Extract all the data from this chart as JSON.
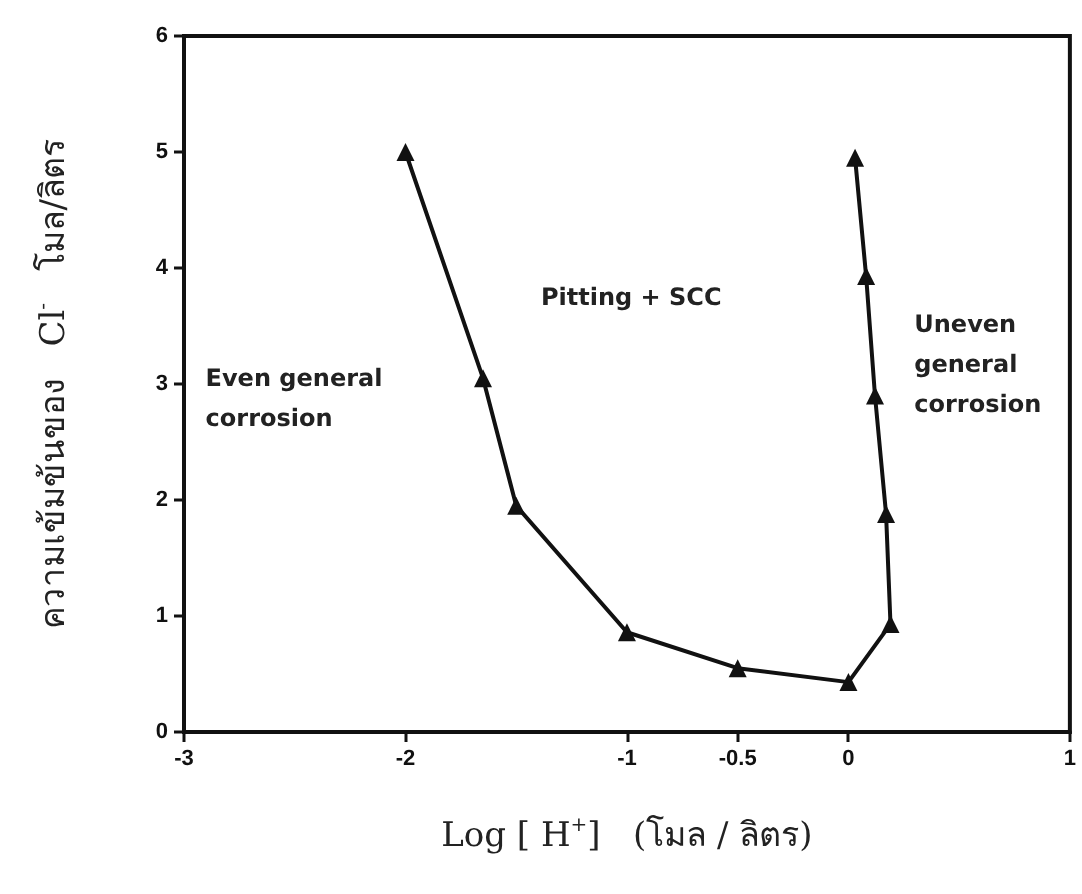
{
  "chart_data": {
    "type": "line",
    "xlabel": "Log [ H$^{+}$]   (โมล / ลิตร)",
    "ylabel": "ความเข้มข้นของ   Cl$^{-}$   โมล/ลิตร",
    "x": [
      -2,
      -1.65,
      -1.5,
      -1,
      -0.5,
      0,
      0.19,
      0.17,
      0.12,
      0.08,
      0.03
    ],
    "series": [
      {
        "color": "#111111",
        "values": [
          5,
          3.05,
          1.95,
          0.86,
          0.55,
          0.43,
          0.93,
          1.88,
          2.9,
          3.93,
          4.95
        ]
      }
    ],
    "xlim": [
      -3,
      1
    ],
    "xticks": [
      -3,
      -2,
      -1,
      -0.5,
      0,
      1
    ],
    "ylim": [
      0,
      6
    ],
    "yticks": [
      0,
      1,
      2,
      3,
      4,
      5,
      6
    ],
    "marker": "triangle",
    "line_style": "solid",
    "grid": false,
    "annotations": [
      "Even general\ncorrosion",
      "Pitting + SCC",
      "Uneven\ngeneral\ncorrosion"
    ]
  }
}
